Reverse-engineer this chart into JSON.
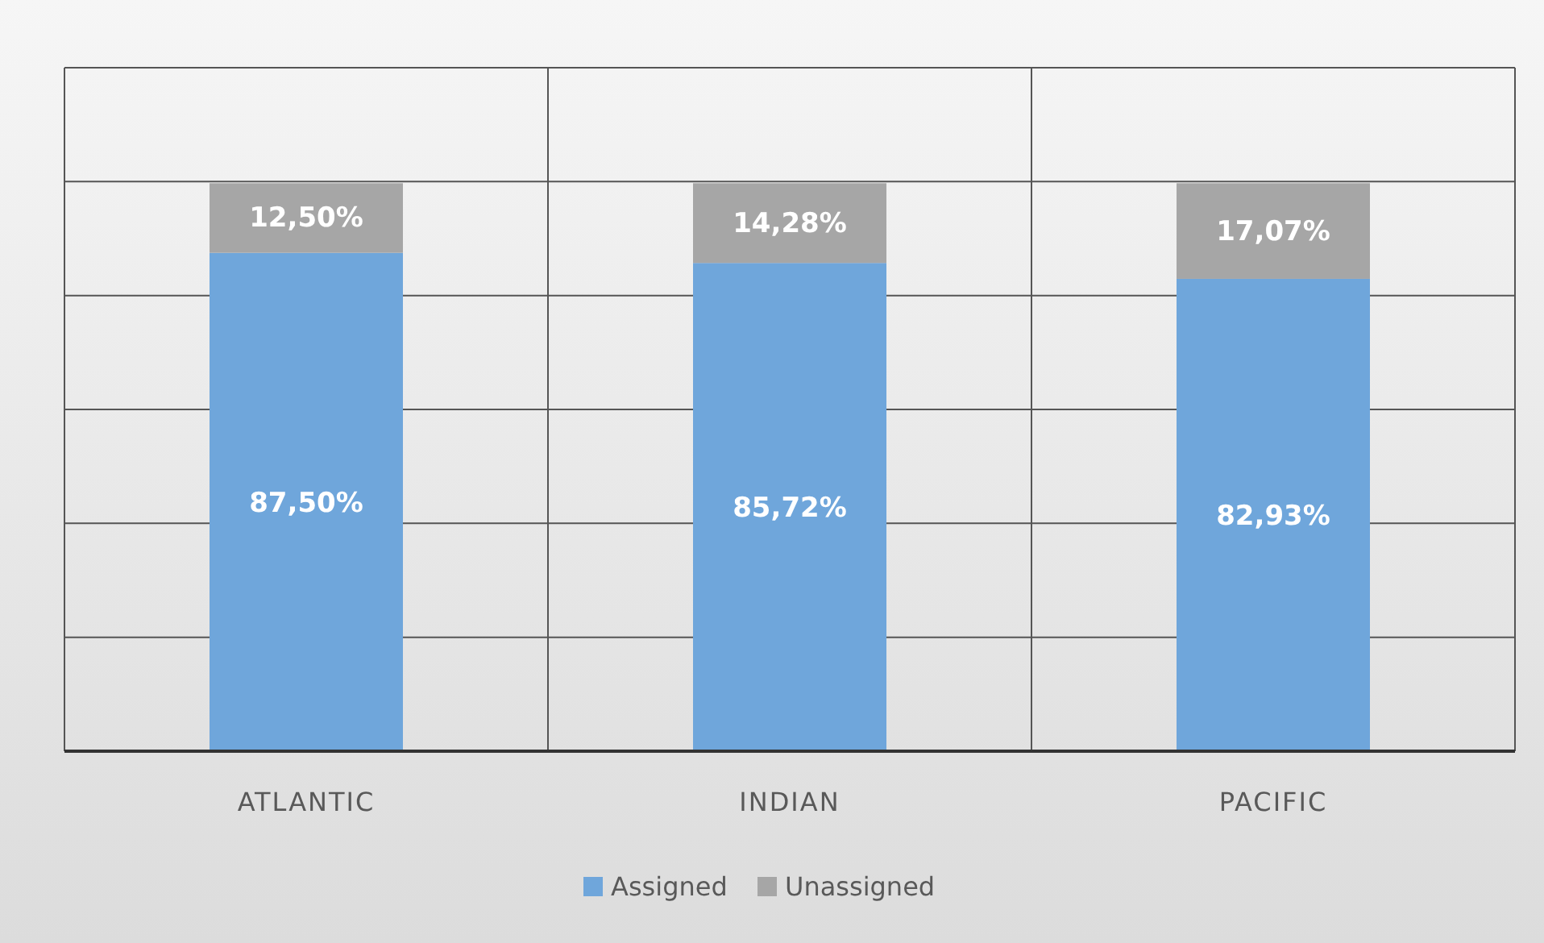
{
  "chart_data": {
    "type": "bar",
    "stacked": true,
    "categories": [
      "ATLANTIC",
      "INDIAN",
      "PACIFIC"
    ],
    "series": [
      {
        "name": "Assigned",
        "color": "#6fa6db",
        "values": [
          87.5,
          85.72,
          82.93
        ],
        "value_labels": [
          "87,50%",
          "85,72%",
          "82,93%"
        ]
      },
      {
        "name": "Unassigned",
        "color": "#a6a6a6",
        "values": [
          12.5,
          14.28,
          17.07
        ],
        "value_labels": [
          "12,50%",
          "14,28%",
          "17,07%"
        ]
      }
    ],
    "ylim": [
      0,
      120
    ],
    "yticks": [
      0,
      20,
      40,
      60,
      80,
      100,
      120
    ],
    "tick_labels": "x",
    "grid": true,
    "legend": "bottom"
  }
}
